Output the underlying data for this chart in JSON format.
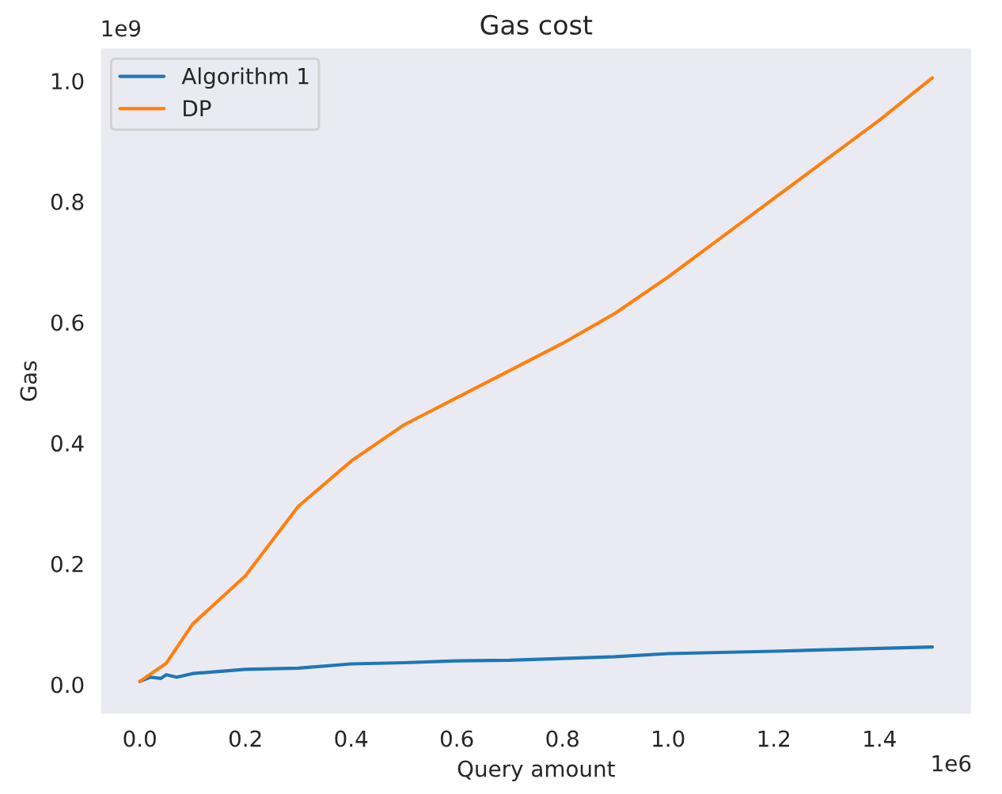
{
  "chart_data": {
    "type": "line",
    "title": "Gas cost",
    "xlabel": "Query amount",
    "ylabel": "Gas",
    "annotations": [
      "1e9",
      "1e6"
    ],
    "xlim": [
      -0.075,
      1.575
    ],
    "xticks": [
      {
        "value": 0,
        "label": "0.0"
      },
      0.2,
      0.4,
      0.6,
      0.8,
      {
        "value": 1,
        "label": "1.0"
      },
      1.2,
      1.4
    ],
    "ylim": [
      -0.05,
      1.055
    ],
    "yticks": [
      {
        "value": 0,
        "label": "0.0"
      },
      0.2,
      0.4,
      0.6,
      0.8,
      {
        "value": 1,
        "label": "1.0"
      }
    ],
    "grid": false,
    "legend": "top left",
    "series": [
      {
        "name": "Algorithm 1",
        "color": "#1f77b4",
        "x": [
          0,
          0.02,
          0.04,
          0.05,
          0.07,
          0.1,
          0.2,
          0.3,
          0.4,
          0.5,
          0.6,
          0.7,
          0.8,
          0.9,
          1.0,
          1.2,
          1.5
        ],
        "values": [
          0.005,
          0.012,
          0.01,
          0.016,
          0.012,
          0.018,
          0.025,
          0.027,
          0.034,
          0.036,
          0.039,
          0.04,
          0.043,
          0.046,
          0.051,
          0.055,
          0.062
        ]
      },
      {
        "name": "DP",
        "color": "#ff7f0e",
        "x": [
          0,
          0.05,
          0.1,
          0.2,
          0.3,
          0.4,
          0.5,
          0.6,
          0.7,
          0.8,
          0.9,
          1.0,
          1.1,
          1.2,
          1.3,
          1.4,
          1.5
        ],
        "values": [
          0.005,
          0.035,
          0.1,
          0.18,
          0.295,
          0.37,
          0.43,
          0.475,
          0.52,
          0.565,
          0.615,
          0.675,
          0.74,
          0.805,
          0.87,
          0.935,
          1.005
        ]
      }
    ]
  }
}
